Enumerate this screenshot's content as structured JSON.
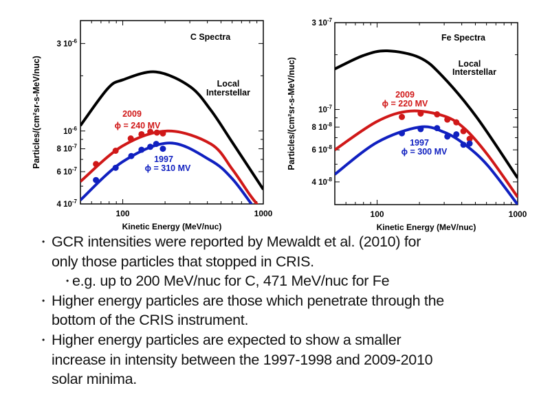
{
  "chart_data": [
    {
      "type": "line",
      "title": "C Spectra",
      "xlabel": "Kinetic Energy (MeV/nuc)",
      "ylabel": "Particles/(cm²sr-s-MeV/nuc)",
      "xscale": "log",
      "yscale": "log",
      "xlim": [
        50,
        1000
      ],
      "ylim": [
        4e-07,
        4e-06
      ],
      "grid": false,
      "x_ticks": [
        {
          "value": 100,
          "label": "100"
        },
        {
          "value": 1000,
          "label": "1000"
        }
      ],
      "y_ticks": [
        {
          "value": 4e-07,
          "label": "4 10",
          "exp": "-7"
        },
        {
          "value": 6e-07,
          "label": "6 10",
          "exp": "-7"
        },
        {
          "value": 8e-07,
          "label": "8 10",
          "exp": "-7"
        },
        {
          "value": 1e-06,
          "label": "10",
          "exp": "-6"
        },
        {
          "value": 3e-06,
          "label": "3 10",
          "exp": "-6"
        }
      ],
      "annotations": {
        "lis": [
          "Local",
          "Interstellar"
        ],
        "y2009": [
          "2009",
          "ϕ = 240 MV"
        ],
        "y1997": [
          "1997",
          "ϕ = 310 MV"
        ]
      },
      "series": [
        {
          "key": "lis",
          "color": "#000000",
          "curve": {
            "x": [
              50,
              78,
              100,
              172,
              300,
              423,
              600,
              1000
            ],
            "y": [
              1.07e-06,
              1.7e-06,
              1.9e-06,
              2.1e-06,
              1.75e-06,
              1.3e-06,
              8.7e-07,
              4.8e-07
            ]
          }
        },
        {
          "key": "y2009",
          "color": "#d01818",
          "curve": {
            "x": [
              50,
              100,
              208,
              423,
              600,
              800,
              950
            ],
            "y": [
              5.3e-07,
              8.3e-07,
              1e-06,
              8.5e-07,
              6.2e-07,
              4.5e-07,
              3.8e-07
            ]
          },
          "points": {
            "x": [
              64.5,
              89,
              114,
              136,
              157,
              175,
              193
            ],
            "y": [
              6.6e-07,
              7.8e-07,
              9.1e-07,
              9.6e-07,
              9.9e-07,
              9.8e-07,
              9.7e-07
            ]
          }
        },
        {
          "key": "y1997",
          "color": "#1020c0",
          "curve": {
            "x": [
              50,
              100,
              215,
              423,
              600,
              822,
              900
            ],
            "y": [
              4.2e-07,
              6.8e-07,
              8.6e-07,
              6.9e-07,
              5.5e-07,
              4e-07,
              3.6e-07
            ]
          },
          "points": {
            "x": [
              64.5,
              89,
              115,
              136,
              157,
              173,
              193
            ],
            "y": [
              5.4e-07,
              6.3e-07,
              7.3e-07,
              7.9e-07,
              8.2e-07,
              8.5e-07,
              8e-07
            ]
          }
        }
      ]
    },
    {
      "type": "line",
      "title": "Fe Spectra",
      "xlabel": "Kinetic Energy (MeV/nuc)",
      "ylabel": "Particles/(cm²sr-s-MeV/nuc)",
      "xscale": "log",
      "yscale": "log",
      "xlim": [
        50,
        1000
      ],
      "ylim": [
        3e-08,
        3e-07
      ],
      "grid": false,
      "x_ticks": [
        {
          "value": 100,
          "label": "100"
        },
        {
          "value": 1000,
          "label": "1000"
        }
      ],
      "y_ticks": [
        {
          "value": 4e-08,
          "label": "4 10",
          "exp": "-8"
        },
        {
          "value": 6e-08,
          "label": "6 10",
          "exp": "-8"
        },
        {
          "value": 8e-08,
          "label": "8 10",
          "exp": "-8"
        },
        {
          "value": 1e-07,
          "label": "10",
          "exp": "-7"
        },
        {
          "value": 3e-07,
          "label": "3 10",
          "exp": "-7"
        }
      ],
      "annotations": {
        "lis": [
          "Local",
          "Interstellar"
        ],
        "y2009": [
          "2009",
          "ϕ = 220 MV"
        ],
        "y1997": [
          "1997",
          "ϕ = 300 MV"
        ]
      },
      "series": [
        {
          "key": "lis",
          "color": "#000000",
          "curve": {
            "x": [
              50,
              80,
              118,
              200,
              290,
              509,
              1000
            ],
            "y": [
              1.67e-07,
              1.98e-07,
              2.1e-07,
              1.93e-07,
              1.53e-07,
              9.1e-08,
              4.2e-08
            ]
          }
        },
        {
          "key": "y2009",
          "color": "#d01818",
          "curve": {
            "x": [
              50,
              100,
              172,
              300,
              423,
              615,
              1000
            ],
            "y": [
              6e-08,
              8.6e-08,
              9.8e-08,
              9.2e-08,
              7.8e-08,
              5.6e-08,
              3.3e-08
            ]
          },
          "points": {
            "x": [
              150,
              204,
              267,
              316,
              366,
              411,
              455
            ],
            "y": [
              9.1e-08,
              9.5e-08,
              9.4e-08,
              8.8e-08,
              8.5e-08,
              7.6e-08,
              6.9e-08
            ]
          }
        },
        {
          "key": "y1997",
          "color": "#1020c0",
          "curve": {
            "x": [
              50,
              100,
              200,
              300,
              423,
              615,
              1000
            ],
            "y": [
              4.4e-08,
              6.6e-08,
              8e-08,
              7.5e-08,
              6.4e-08,
              4.9e-08,
              3e-08
            ]
          },
          "points": {
            "x": [
              150,
              204,
              267,
              316,
              366,
              411,
              455
            ],
            "y": [
              7.4e-08,
              7.8e-08,
              7.9e-08,
              7.1e-08,
              7.3e-08,
              6.4e-08,
              6.5e-08
            ]
          }
        }
      ]
    }
  ],
  "bullets": [
    {
      "level": 1,
      "lines": [
        "GCR intensities were reported by Mewaldt et al. (2010) for",
        "only those particles that stopped in CRIS."
      ]
    },
    {
      "level": 2,
      "lines": [
        "e.g. up to 200 MeV/nuc for C, 471 MeV/nuc for Fe"
      ]
    },
    {
      "level": 1,
      "lines": [
        "Higher energy particles are those which penetrate through the",
        "bottom of the CRIS instrument."
      ]
    },
    {
      "level": 1,
      "lines": [
        "Higher energy particles are expected to show a smaller",
        "increase in intensity between the 1997-1998 and 2009-2010",
        "solar minima."
      ]
    }
  ],
  "bullet_glyph": "•"
}
